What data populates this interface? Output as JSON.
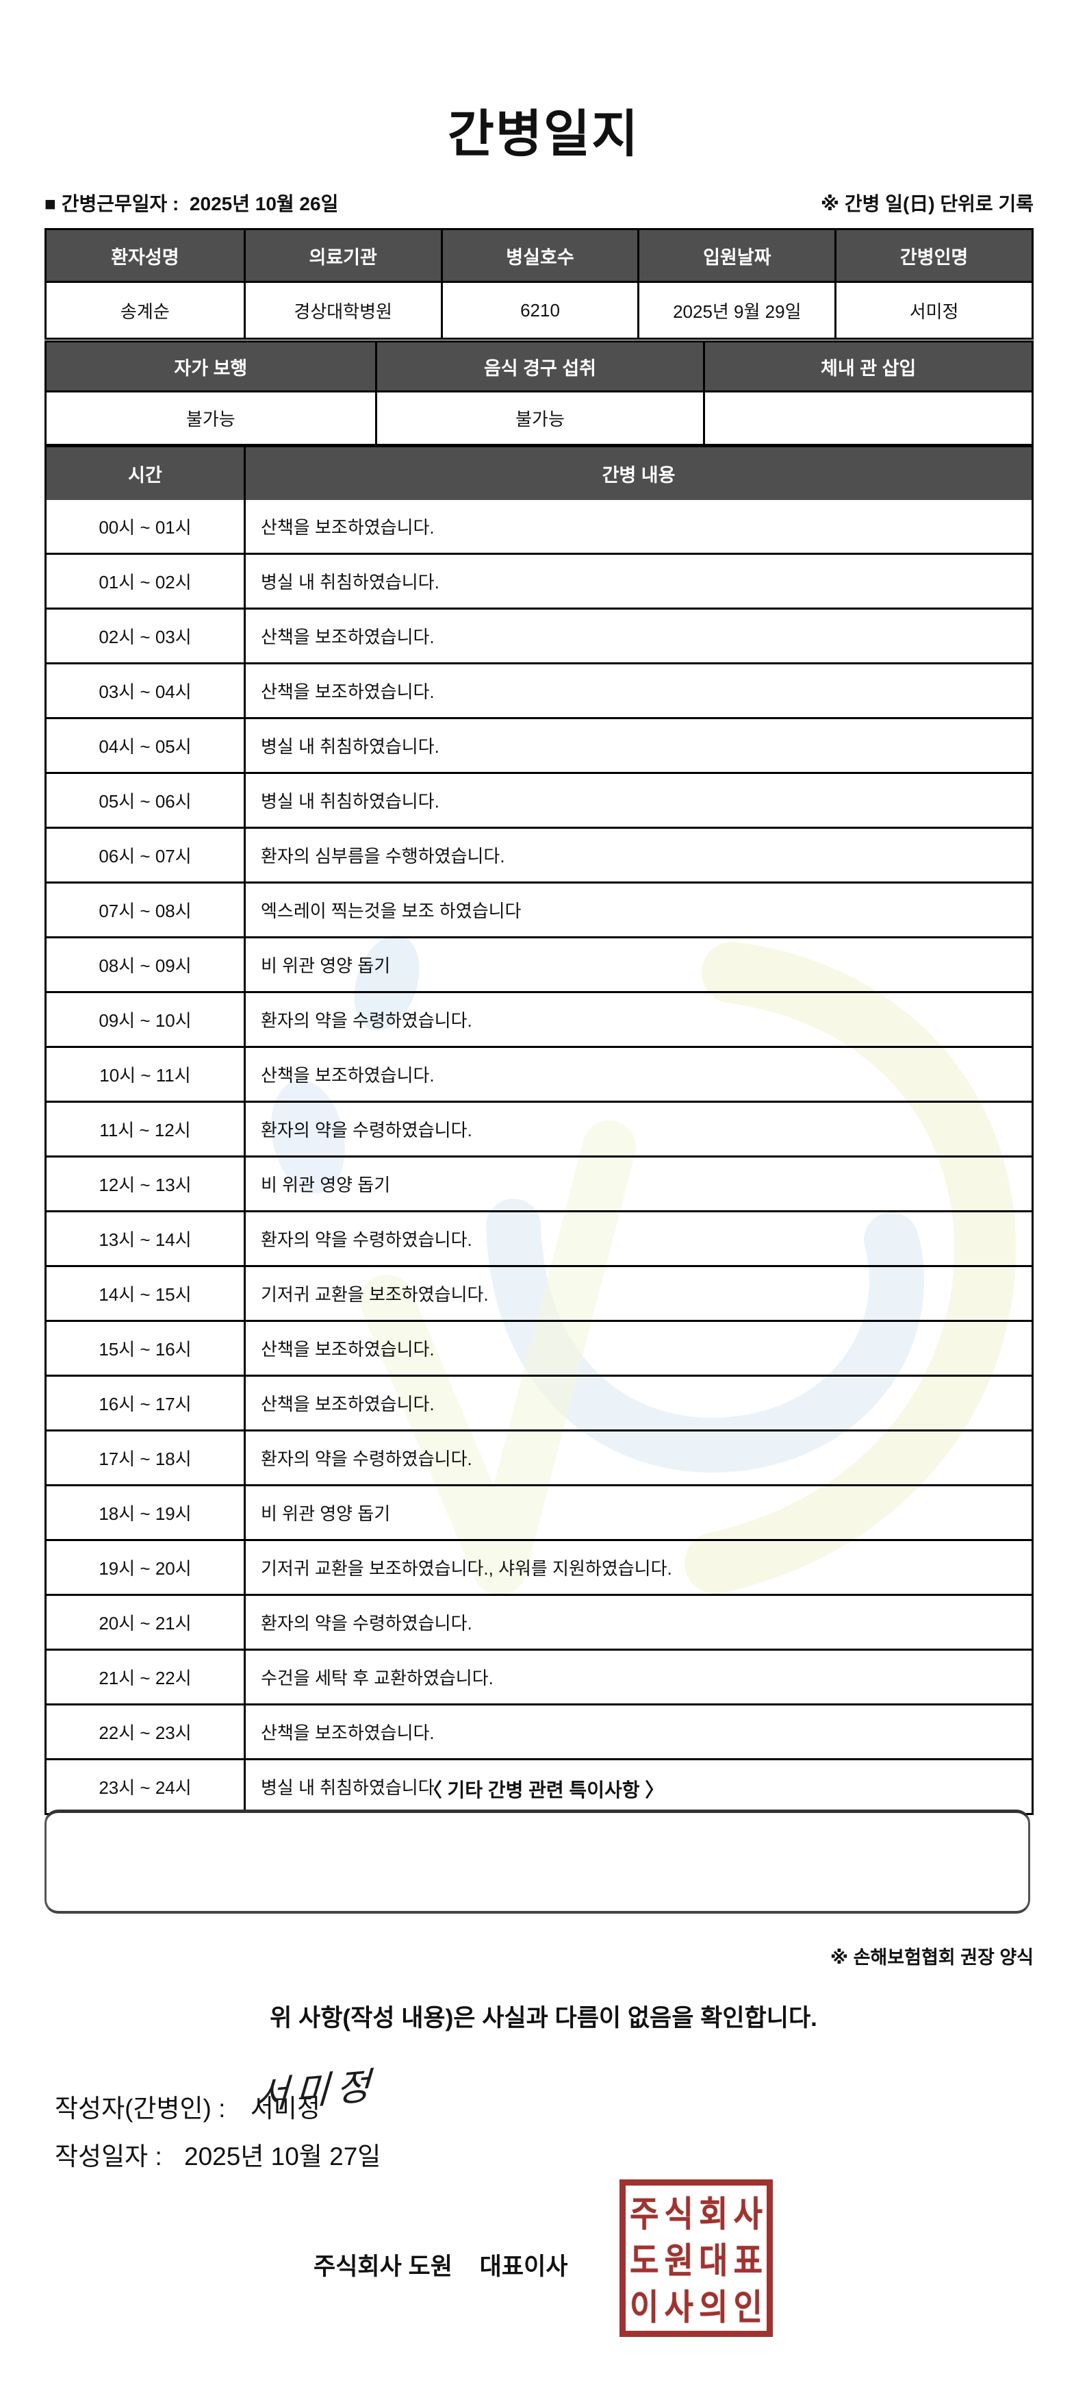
{
  "title": "간병일지",
  "meta": {
    "work_date_label": "■ 간병근무일자 :",
    "work_date": "2025년 10월 26일",
    "unit_note": "※ 간병 일(日) 단위로 기록"
  },
  "patient_table": {
    "headers": [
      "환자성명",
      "의료기관",
      "병실호수",
      "입원날짜",
      "간병인명"
    ],
    "values": [
      "송계순",
      "경상대학병원",
      "6210",
      "2025년 9월 29일",
      "서미정"
    ]
  },
  "condition_table": {
    "headers": [
      "자가 보행",
      "음식 경구 섭취",
      "체내 관 삽입"
    ],
    "values": [
      "불가능",
      "불가능",
      ""
    ]
  },
  "care_table": {
    "time_header": "시간",
    "content_header": "간병 내용",
    "rows": [
      {
        "time": "00시 ~ 01시",
        "content": "산책을 보조하였습니다."
      },
      {
        "time": "01시 ~ 02시",
        "content": "병실 내 취침하였습니다."
      },
      {
        "time": "02시 ~ 03시",
        "content": "산책을 보조하였습니다."
      },
      {
        "time": "03시 ~ 04시",
        "content": "산책을 보조하였습니다."
      },
      {
        "time": "04시 ~ 05시",
        "content": "병실 내 취침하였습니다."
      },
      {
        "time": "05시 ~ 06시",
        "content": "병실 내 취침하였습니다."
      },
      {
        "time": "06시 ~ 07시",
        "content": "환자의 심부름을 수행하였습니다."
      },
      {
        "time": "07시 ~ 08시",
        "content": "엑스레이 찍는것을 보조 하였습니다"
      },
      {
        "time": "08시 ~ 09시",
        "content": "비 위관 영양 돕기"
      },
      {
        "time": "09시 ~ 10시",
        "content": "환자의 약을 수령하였습니다."
      },
      {
        "time": "10시 ~ 11시",
        "content": "산책을 보조하였습니다."
      },
      {
        "time": "11시 ~ 12시",
        "content": "환자의 약을 수령하였습니다."
      },
      {
        "time": "12시 ~ 13시",
        "content": "비 위관 영양 돕기"
      },
      {
        "time": "13시 ~ 14시",
        "content": "환자의 약을 수령하였습니다."
      },
      {
        "time": "14시 ~ 15시",
        "content": "기저귀 교환을 보조하였습니다."
      },
      {
        "time": "15시 ~ 16시",
        "content": "산책을 보조하였습니다."
      },
      {
        "time": "16시 ~ 17시",
        "content": "산책을 보조하였습니다."
      },
      {
        "time": "17시 ~ 18시",
        "content": "환자의 약을 수령하였습니다."
      },
      {
        "time": "18시 ~ 19시",
        "content": "비 위관 영양 돕기"
      },
      {
        "time": "19시 ~ 20시",
        "content": "기저귀 교환을 보조하였습니다., 샤워를 지원하였습니다."
      },
      {
        "time": "20시 ~ 21시",
        "content": "환자의 약을 수령하였습니다."
      },
      {
        "time": "21시 ~ 22시",
        "content": "수건을 세탁 후 교환하였습니다."
      },
      {
        "time": "22시 ~ 23시",
        "content": "산책을 보조하였습니다."
      },
      {
        "time": "23시 ~ 24시",
        "content": "병실 내 취침하였습니다."
      }
    ]
  },
  "notes": {
    "heading": "〈 기타 간병 관련 특이사항 〉",
    "content": "",
    "form_note": "※ 손해보험협회 권장 양식"
  },
  "footer": {
    "statement": "위 사항(작성 내용)은 사실과 다름이 없음을 확인합니다.",
    "writer_label": "작성자(간병인) :",
    "writer_name": "서미정",
    "signature": "서미정",
    "date_label": "작성일자 :",
    "date_value": "2025년 10월 27일",
    "company_name": "주식회사 도원",
    "company_role": "대표이사",
    "stamp_chars": [
      "주",
      "식",
      "회",
      "사",
      "도",
      "원",
      "대",
      "표",
      "이",
      "사",
      "의",
      "인"
    ]
  },
  "colors": {
    "header_bg": "#4f4f4f",
    "border": "#000000",
    "stamp_red": "#9e3330",
    "watermark_blue": "#b7d3ea",
    "watermark_green": "#e4ebae"
  }
}
